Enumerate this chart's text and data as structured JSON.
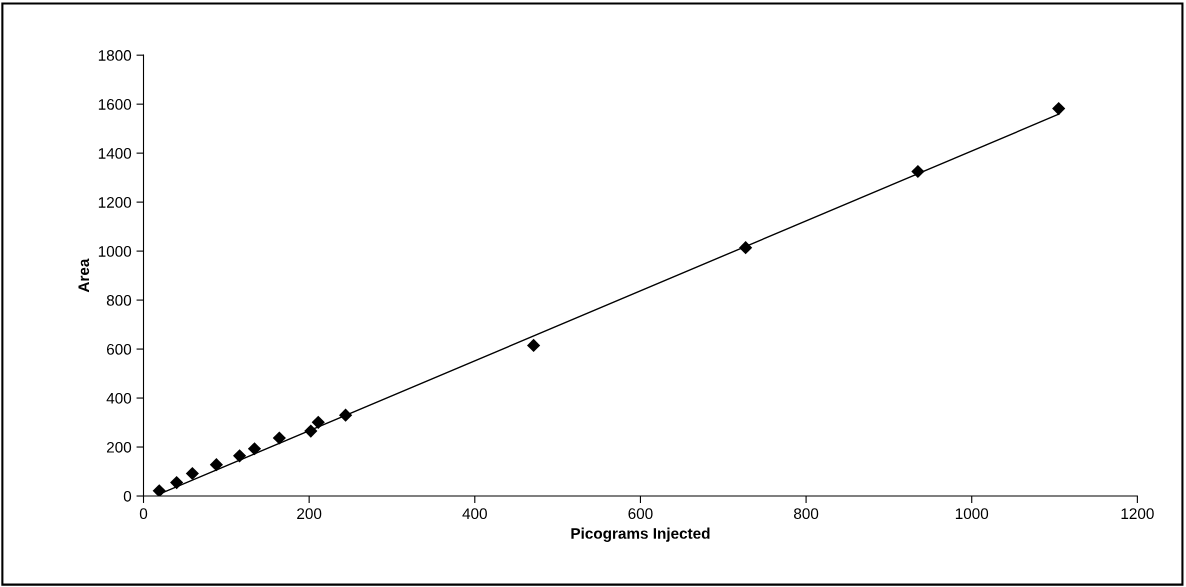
{
  "chart_data": {
    "type": "scatter",
    "xlabel": "Picograms Injected",
    "ylabel": "Area",
    "xlim": [
      0,
      1200
    ],
    "xticks": [
      0,
      200,
      400,
      600,
      800,
      1000,
      1200
    ],
    "ylim": [
      0,
      1800
    ],
    "yticks": [
      0,
      200,
      400,
      600,
      800,
      1000,
      1200,
      1400,
      1600,
      1800
    ],
    "grid": false,
    "legend": false,
    "marker": "diamond",
    "series": [
      {
        "color": "#000000",
        "x": [
          19,
          40,
          59,
          88,
          116,
          134,
          164,
          202,
          211,
          244,
          471,
          727,
          935,
          1105
        ],
        "values": [
          21,
          55,
          92,
          128,
          164,
          193,
          237,
          265,
          301,
          330,
          615,
          1014,
          1325,
          1582
        ]
      },
      {
        "type": "line",
        "color": "#000000",
        "marker": "none",
        "x": [
          19,
          1105
        ],
        "values": [
          8,
          1559
        ]
      }
    ]
  }
}
